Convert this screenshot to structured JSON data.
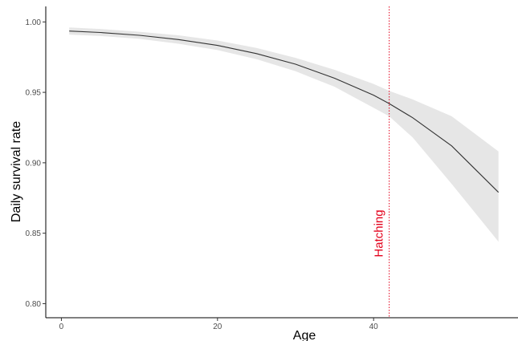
{
  "chart_data": {
    "type": "line",
    "title": "",
    "xlabel": "Age",
    "ylabel": "Daily survival rate",
    "xlim": [
      -2,
      58.5
    ],
    "ylim": [
      0.79,
      1.011
    ],
    "x_ticks": [
      0,
      20,
      40
    ],
    "x_tick_labels": [
      "0",
      "20",
      "40"
    ],
    "y_ticks": [
      0.8,
      0.85,
      0.9,
      0.95,
      1.0
    ],
    "y_tick_labels": [
      "0.80",
      "0.85",
      "0.90",
      "0.95",
      "1.00"
    ],
    "grid": false,
    "legend": "none",
    "series": [
      {
        "x": [
          1,
          5,
          10,
          15,
          20,
          25,
          30,
          35,
          40,
          42,
          45,
          50,
          56
        ],
        "y": [
          0.9935,
          0.9925,
          0.9905,
          0.9875,
          0.9833,
          0.9775,
          0.97,
          0.96,
          0.948,
          0.942,
          0.932,
          0.912,
          0.879
        ],
        "lower": [
          0.991,
          0.99,
          0.988,
          0.9845,
          0.98,
          0.9735,
          0.965,
          0.954,
          0.939,
          0.933,
          0.918,
          0.885,
          0.844
        ],
        "upper": [
          0.996,
          0.995,
          0.993,
          0.9905,
          0.9868,
          0.9815,
          0.9745,
          0.966,
          0.956,
          0.951,
          0.945,
          0.933,
          0.908
        ]
      }
    ],
    "annotations": [
      {
        "type": "vline",
        "x": 42,
        "label": "Hatching",
        "color": "#e3001b",
        "linestyle": "dotted"
      }
    ],
    "colors": {
      "line": "#333333",
      "ribbon": "#e6e6e6",
      "axis": "#000000"
    }
  }
}
